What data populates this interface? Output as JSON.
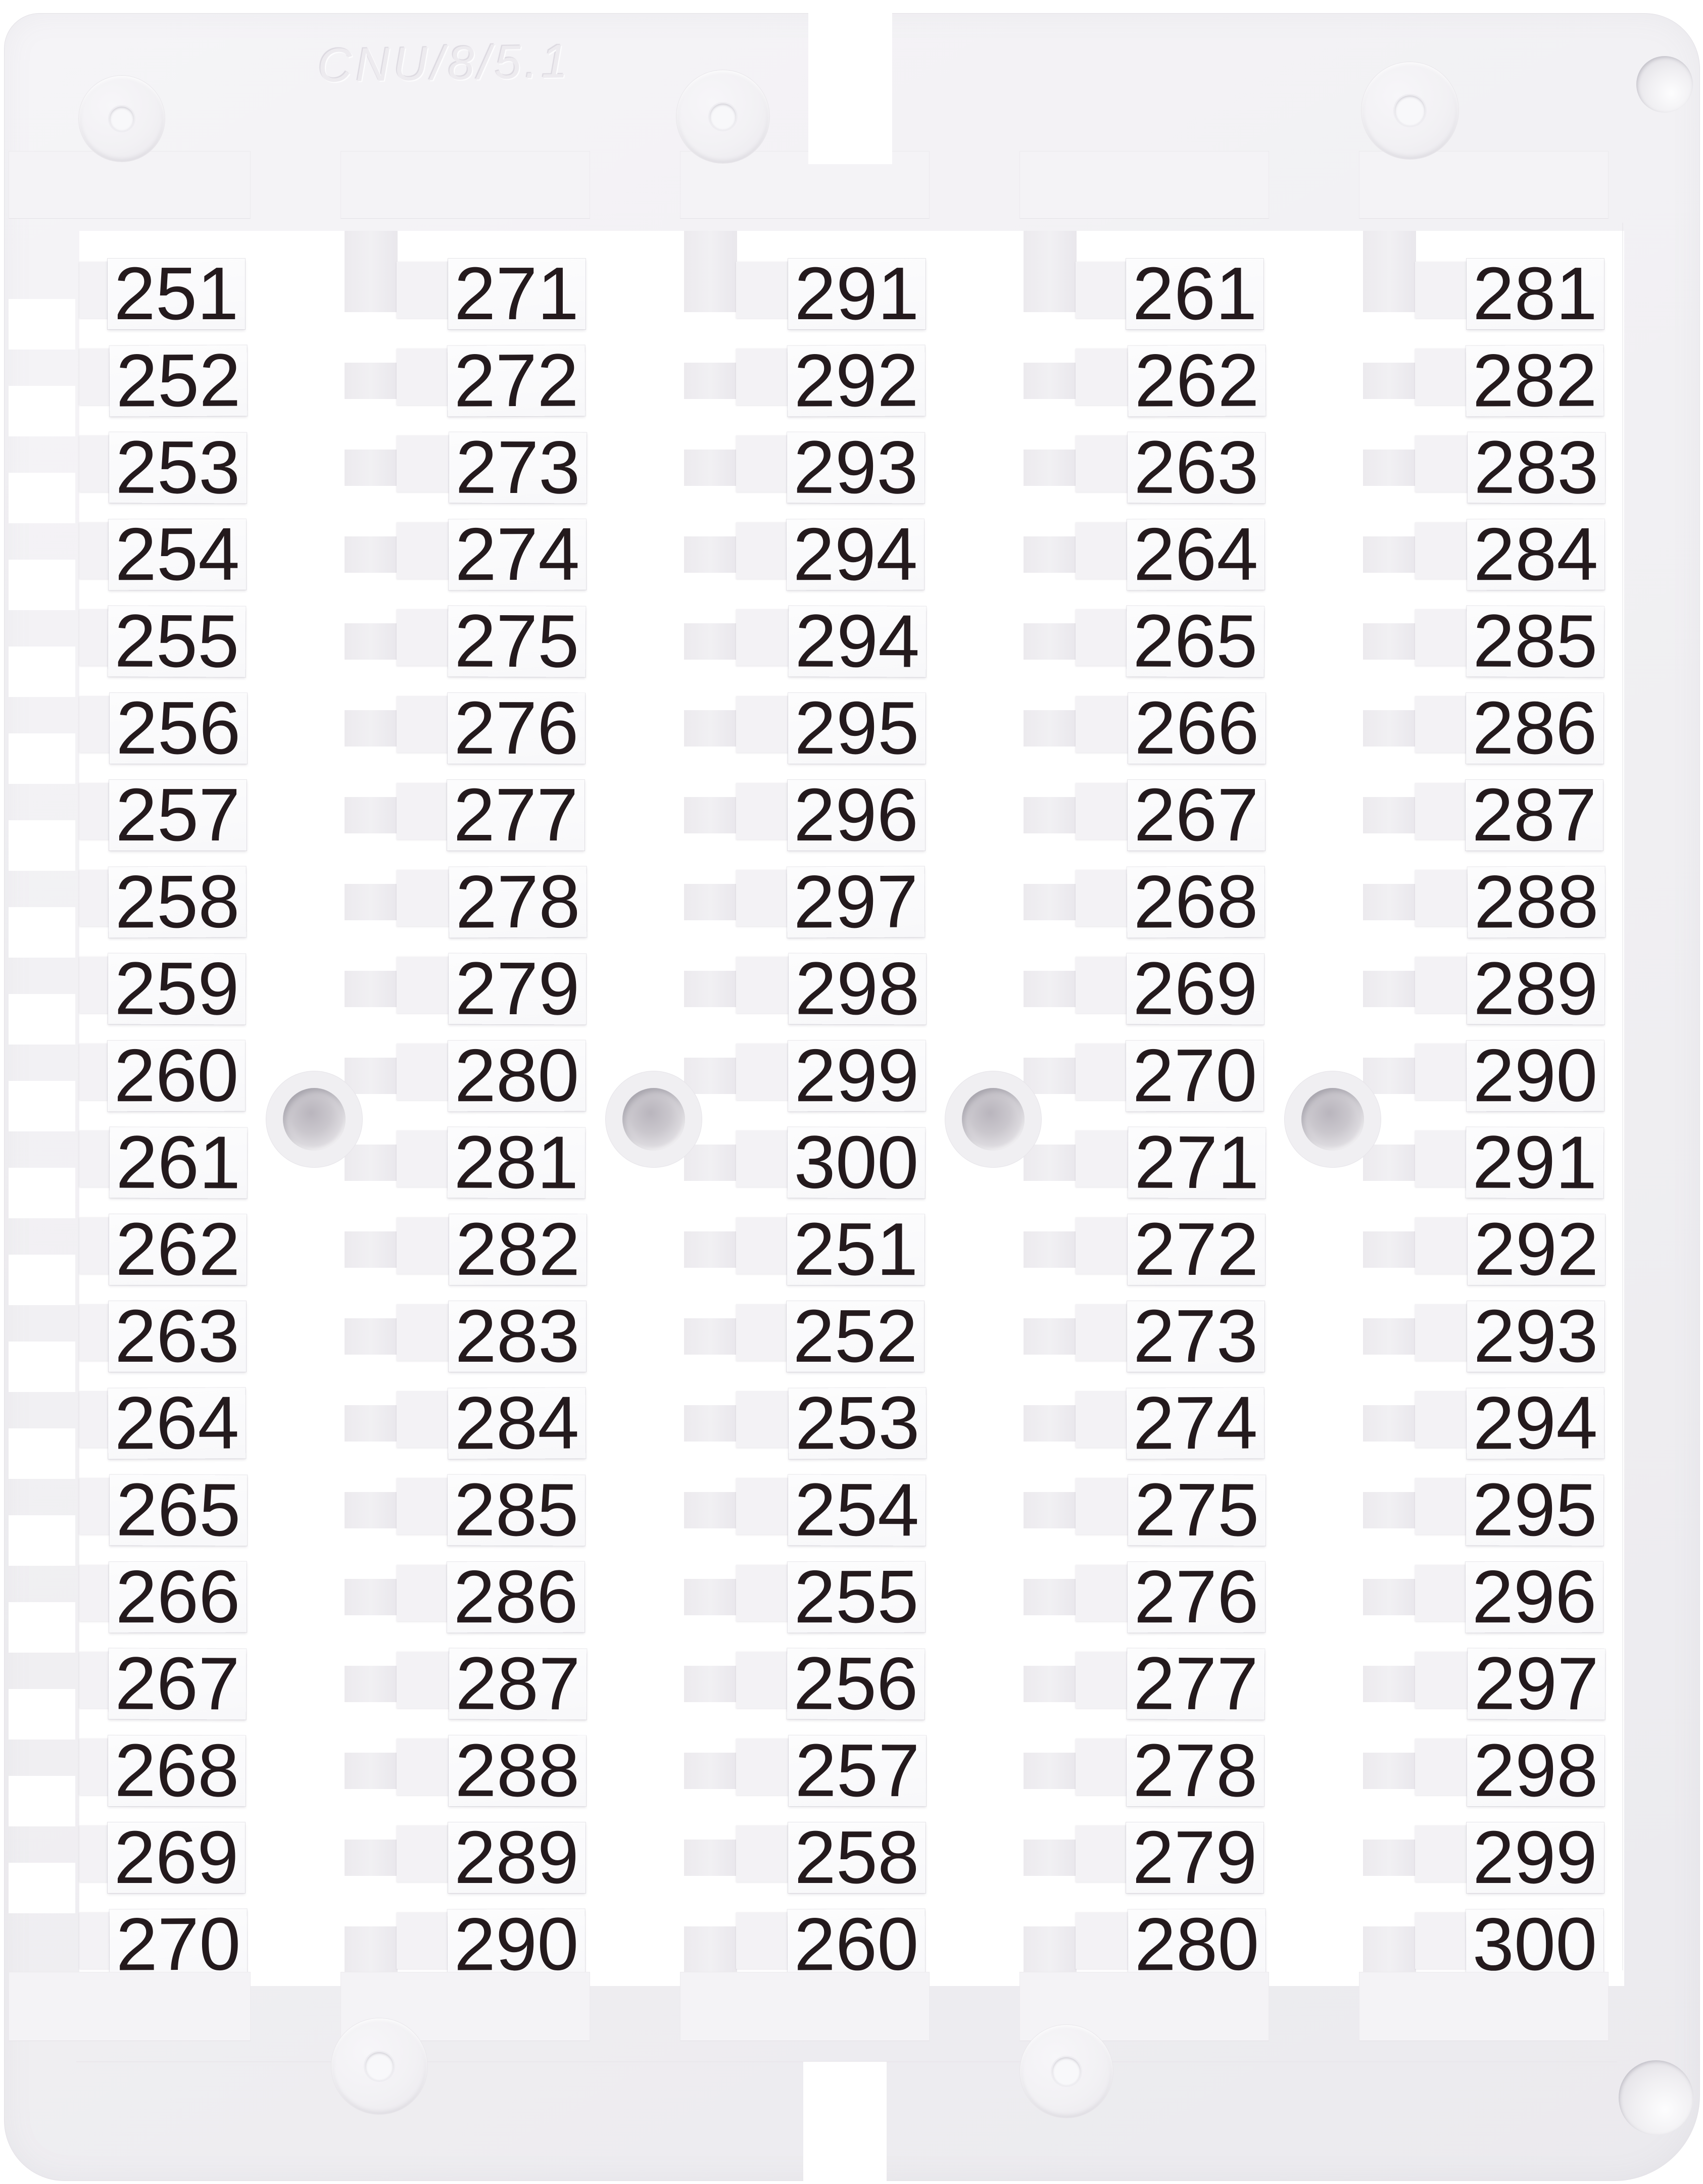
{
  "card": {
    "embossed_marking": "CNU/8/5.1",
    "columns": [
      {
        "id": "column-1",
        "labels": [
          "251",
          "252",
          "253",
          "254",
          "255",
          "256",
          "257",
          "258",
          "259",
          "260",
          "261",
          "262",
          "263",
          "264",
          "265",
          "266",
          "267",
          "268",
          "269",
          "270"
        ]
      },
      {
        "id": "column-2",
        "labels": [
          "271",
          "272",
          "273",
          "274",
          "275",
          "276",
          "277",
          "278",
          "279",
          "280",
          "281",
          "282",
          "283",
          "284",
          "285",
          "286",
          "287",
          "288",
          "289",
          "290"
        ]
      },
      {
        "id": "column-3",
        "labels": [
          "291",
          "292",
          "293",
          "294",
          "294",
          "295",
          "296",
          "297",
          "298",
          "299",
          "300",
          "251",
          "252",
          "253",
          "254",
          "255",
          "256",
          "257",
          "258",
          "260"
        ]
      },
      {
        "id": "column-4",
        "labels": [
          "261",
          "262",
          "263",
          "264",
          "265",
          "266",
          "267",
          "268",
          "269",
          "270",
          "271",
          "272",
          "273",
          "274",
          "275",
          "276",
          "277",
          "278",
          "279",
          "280"
        ]
      },
      {
        "id": "column-5",
        "labels": [
          "281",
          "282",
          "283",
          "284",
          "285",
          "286",
          "287",
          "288",
          "289",
          "290",
          "291",
          "292",
          "293",
          "294",
          "295",
          "296",
          "297",
          "298",
          "299",
          "300"
        ]
      }
    ],
    "colors": {
      "background": "#ffffff",
      "frame": "#f1f0f3",
      "frame_edge": "#e2e0e5",
      "tag": "#fbfbfc",
      "digit": "#241a1d",
      "hole_shadow": "#cfccd2"
    }
  }
}
